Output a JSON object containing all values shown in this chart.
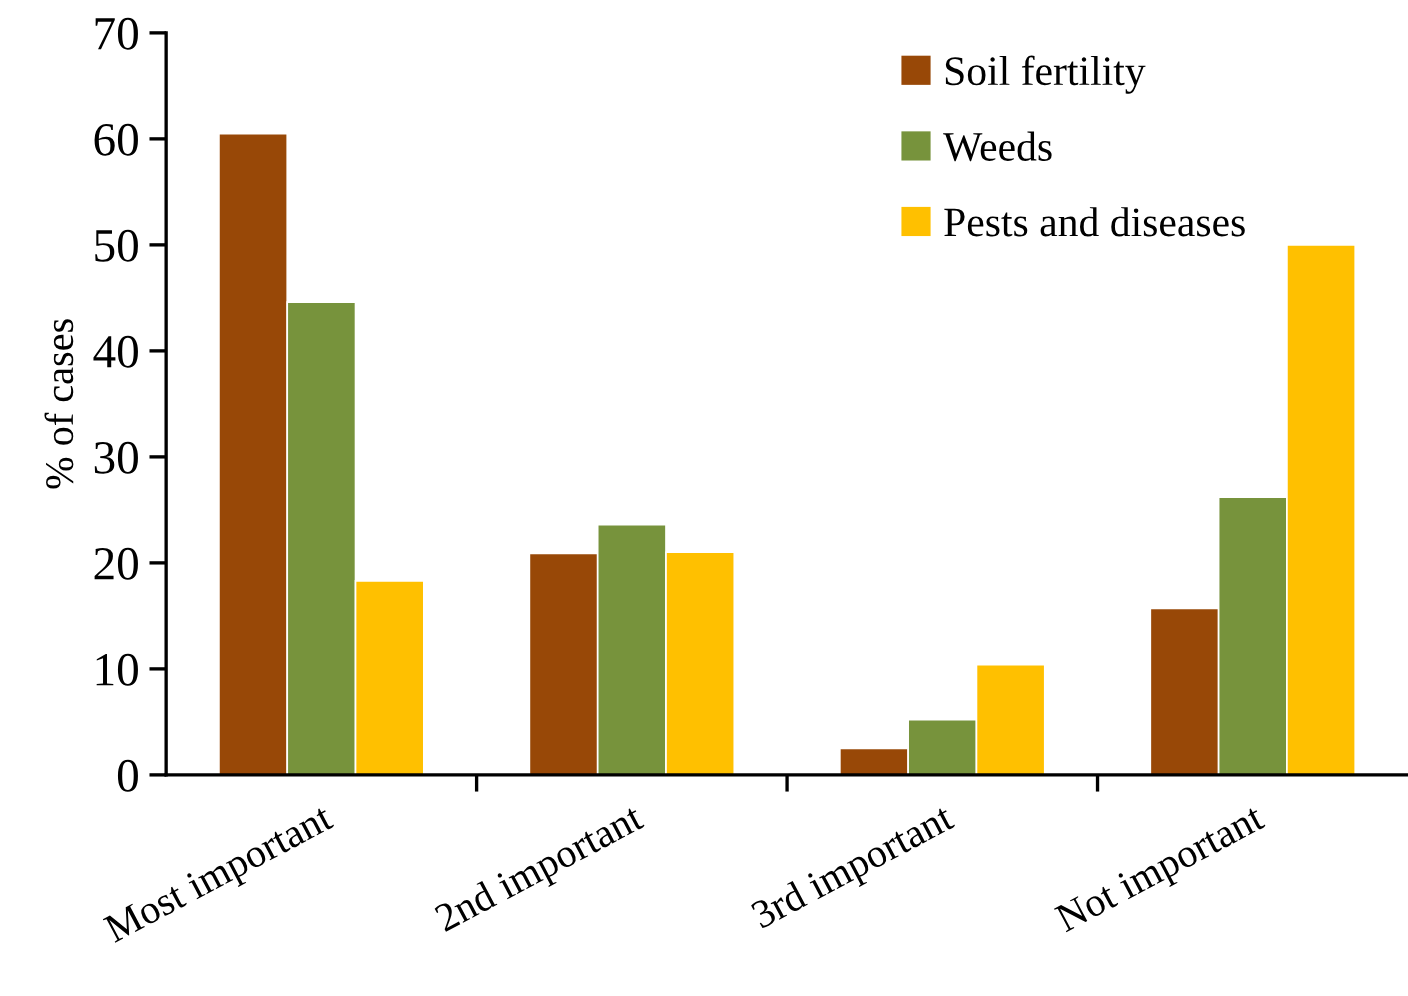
{
  "chart_data": {
    "type": "bar",
    "ylabel": "% of cases",
    "categories": [
      "Most important",
      "2nd important",
      "3rd important",
      "Not important"
    ],
    "series": [
      {
        "name": "Soil fertility",
        "color": "#984807",
        "values": [
          60.5,
          20.9,
          2.5,
          15.7
        ]
      },
      {
        "name": "Weeds",
        "color": "#77933c",
        "values": [
          44.6,
          23.6,
          5.2,
          26.2
        ]
      },
      {
        "name": "Pests and diseases",
        "color": "#ffc000",
        "values": [
          18.3,
          21,
          10.4,
          50
        ]
      }
    ],
    "ylim": [
      0,
      70
    ],
    "yticks": [
      0,
      10,
      20,
      30,
      40,
      50,
      60,
      70
    ],
    "grid": false,
    "legend": "top right"
  }
}
